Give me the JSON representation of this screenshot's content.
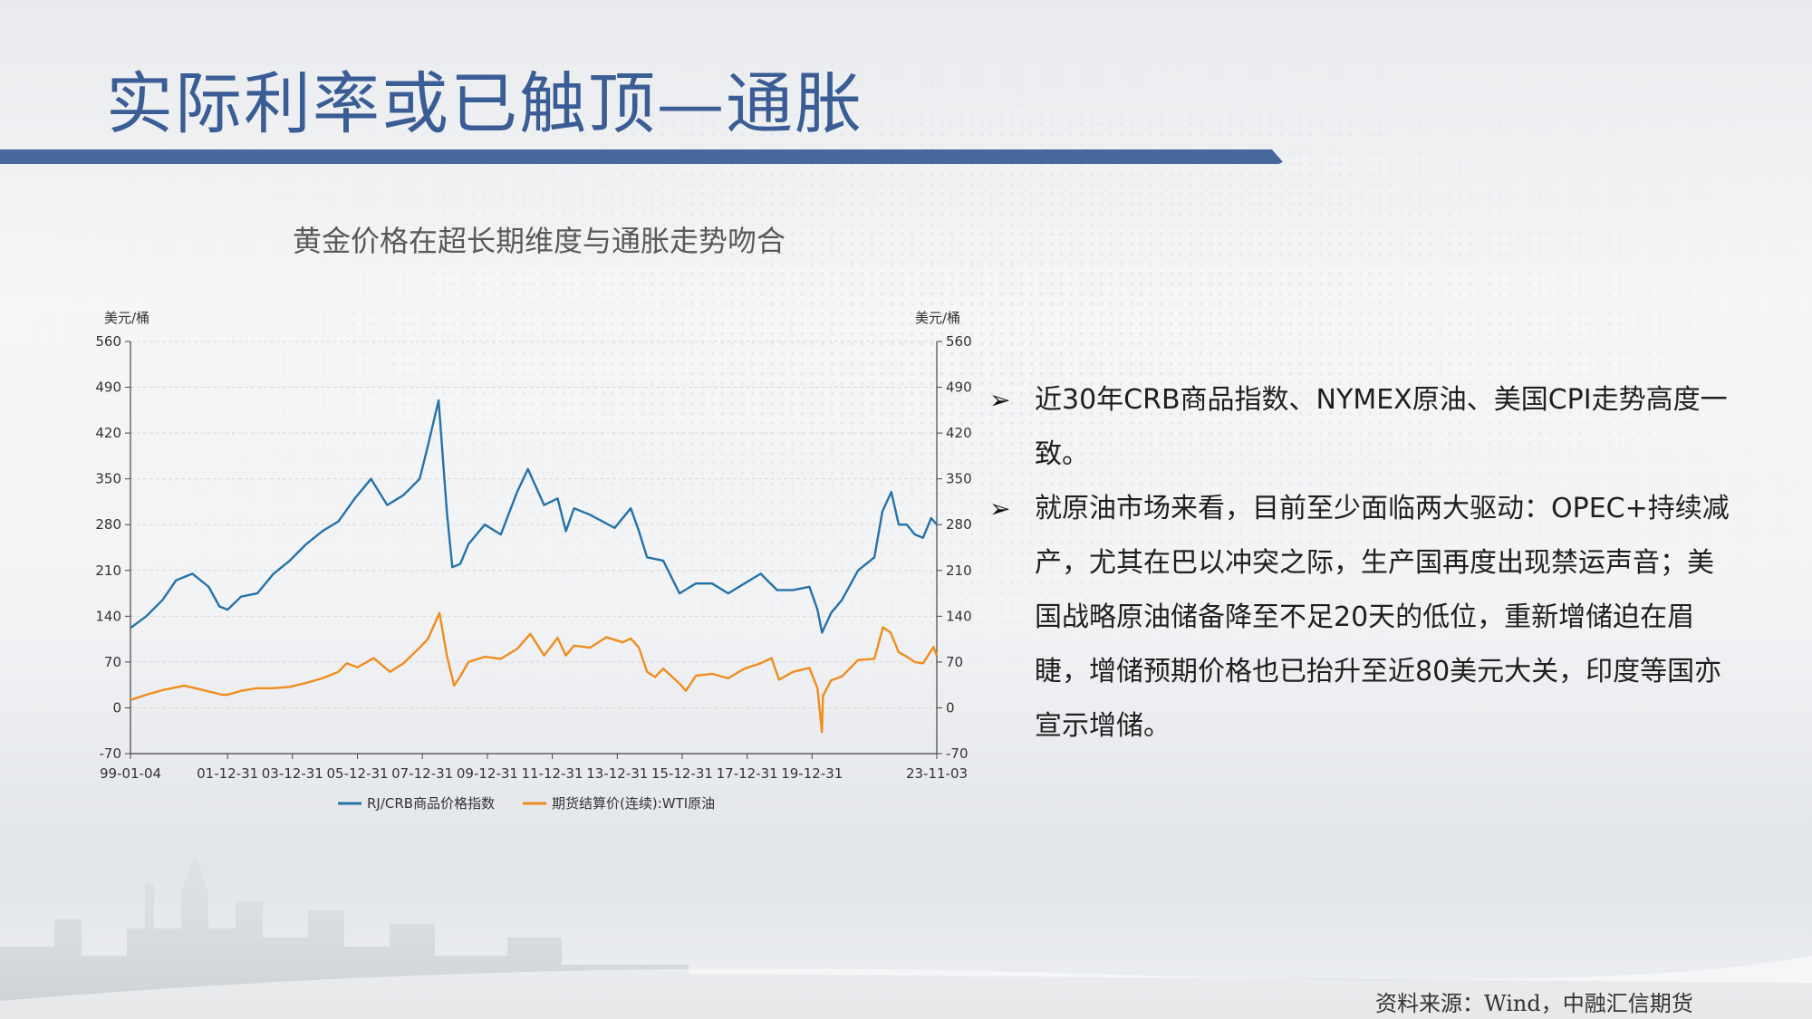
{
  "slide": {
    "title": "实际利率或已触顶—通胀",
    "source": "资料来源：Wind，中融汇信期货"
  },
  "bullets": [
    {
      "icon": "arrow-bullet-icon",
      "text": "近30年CRB商品指数、NYMEX原油、美国CPI走势高度一致。"
    },
    {
      "icon": "arrow-bullet-icon",
      "text": "就原油市场来看，目前至少面临两大驱动：OPEC+持续减产，尤其在巴以冲突之际，生产国再度出现禁运声音；美国战略原油储备降至不足20天的低位，重新增储迫在眉睫，增储预期价格也已抬升至近80美元大关，印度等国亦宣示增储。"
    }
  ],
  "colors": {
    "title": "#3a5d95",
    "crb_series": "#2672a8",
    "wti_series": "#f08c1c"
  },
  "chart_data": {
    "type": "line",
    "title": "黄金价格在超长期维度与通胀走势吻合",
    "left_unit": "美元/桶",
    "right_unit": "美元/桶",
    "ylim": [
      -70,
      560
    ],
    "yticks": [
      -70,
      0,
      70,
      140,
      210,
      280,
      350,
      420,
      490,
      560
    ],
    "xlim": [
      "1999-01-04",
      "2023-11-03"
    ],
    "xtick_labels": [
      "99-01-04",
      "01-12-31",
      "03-12-31",
      "05-12-31",
      "07-12-31",
      "09-12-31",
      "11-12-31",
      "13-12-31",
      "15-12-31",
      "17-12-31",
      "19-12-31",
      "23-11-03"
    ],
    "xtick_dates": [
      "1999-01-04",
      "2001-12-31",
      "2003-12-31",
      "2005-12-31",
      "2007-12-31",
      "2009-12-31",
      "2011-12-31",
      "2013-12-31",
      "2015-12-31",
      "2017-12-31",
      "2019-12-31",
      "2023-11-03"
    ],
    "legend": "bottom",
    "series": [
      {
        "name": "RJ/CRB商品价格指数",
        "color": "#2672a8",
        "points": [
          [
            "1999-01-04",
            122
          ],
          [
            "1999-07-01",
            140
          ],
          [
            "2000-01-01",
            165
          ],
          [
            "2000-06-01",
            195
          ],
          [
            "2000-12-01",
            205
          ],
          [
            "2001-06-01",
            185
          ],
          [
            "2001-10-01",
            155
          ],
          [
            "2002-01-01",
            150
          ],
          [
            "2002-06-01",
            170
          ],
          [
            "2002-12-01",
            175
          ],
          [
            "2003-06-01",
            205
          ],
          [
            "2003-12-01",
            225
          ],
          [
            "2004-06-01",
            250
          ],
          [
            "2004-12-01",
            270
          ],
          [
            "2005-06-01",
            285
          ],
          [
            "2005-12-01",
            320
          ],
          [
            "2006-06-01",
            350
          ],
          [
            "2006-12-01",
            310
          ],
          [
            "2007-06-01",
            325
          ],
          [
            "2007-12-01",
            350
          ],
          [
            "2008-03-01",
            400
          ],
          [
            "2008-07-01",
            470
          ],
          [
            "2008-10-01",
            300
          ],
          [
            "2008-12-01",
            215
          ],
          [
            "2009-03-01",
            220
          ],
          [
            "2009-06-01",
            250
          ],
          [
            "2009-12-01",
            280
          ],
          [
            "2010-06-01",
            265
          ],
          [
            "2010-12-01",
            330
          ],
          [
            "2011-04-01",
            365
          ],
          [
            "2011-10-01",
            310
          ],
          [
            "2012-03-01",
            320
          ],
          [
            "2012-06-01",
            270
          ],
          [
            "2012-09-01",
            305
          ],
          [
            "2013-03-01",
            295
          ],
          [
            "2013-12-01",
            275
          ],
          [
            "2014-06-01",
            305
          ],
          [
            "2014-09-01",
            270
          ],
          [
            "2014-12-01",
            230
          ],
          [
            "2015-06-01",
            225
          ],
          [
            "2015-12-01",
            175
          ],
          [
            "2016-06-01",
            190
          ],
          [
            "2016-12-01",
            190
          ],
          [
            "2017-06-01",
            175
          ],
          [
            "2017-12-01",
            190
          ],
          [
            "2018-06-01",
            205
          ],
          [
            "2018-12-01",
            180
          ],
          [
            "2019-06-01",
            180
          ],
          [
            "2019-12-01",
            185
          ],
          [
            "2020-03-01",
            150
          ],
          [
            "2020-04-21",
            115
          ],
          [
            "2020-08-01",
            145
          ],
          [
            "2020-12-01",
            165
          ],
          [
            "2021-06-01",
            210
          ],
          [
            "2021-12-01",
            230
          ],
          [
            "2022-03-01",
            300
          ],
          [
            "2022-06-09",
            330
          ],
          [
            "2022-09-01",
            280
          ],
          [
            "2022-12-01",
            280
          ],
          [
            "2023-03-01",
            265
          ],
          [
            "2023-06-01",
            260
          ],
          [
            "2023-09-01",
            290
          ],
          [
            "2023-11-03",
            280
          ]
        ]
      },
      {
        "name": "期货结算价(连续):WTI原油",
        "color": "#f08c1c",
        "points": [
          [
            "1999-01-04",
            12
          ],
          [
            "1999-07-01",
            20
          ],
          [
            "2000-01-01",
            27
          ],
          [
            "2000-09-01",
            34
          ],
          [
            "2001-03-01",
            28
          ],
          [
            "2001-11-01",
            20
          ],
          [
            "2002-01-01",
            20
          ],
          [
            "2002-06-01",
            26
          ],
          [
            "2002-12-01",
            30
          ],
          [
            "2003-06-01",
            30
          ],
          [
            "2003-12-01",
            32
          ],
          [
            "2004-06-01",
            38
          ],
          [
            "2004-12-01",
            45
          ],
          [
            "2005-06-01",
            55
          ],
          [
            "2005-08-30",
            68
          ],
          [
            "2006-01-01",
            62
          ],
          [
            "2006-07-01",
            76
          ],
          [
            "2007-01-01",
            55
          ],
          [
            "2007-06-01",
            68
          ],
          [
            "2007-12-01",
            92
          ],
          [
            "2008-03-01",
            105
          ],
          [
            "2008-07-11",
            145
          ],
          [
            "2008-10-01",
            80
          ],
          [
            "2008-12-22",
            34
          ],
          [
            "2009-03-01",
            48
          ],
          [
            "2009-06-01",
            70
          ],
          [
            "2009-12-01",
            78
          ],
          [
            "2010-06-01",
            75
          ],
          [
            "2010-12-01",
            90
          ],
          [
            "2011-04-29",
            113
          ],
          [
            "2011-10-01",
            80
          ],
          [
            "2012-03-01",
            107
          ],
          [
            "2012-06-01",
            80
          ],
          [
            "2012-09-01",
            95
          ],
          [
            "2013-03-01",
            92
          ],
          [
            "2013-09-01",
            108
          ],
          [
            "2014-03-01",
            100
          ],
          [
            "2014-06-01",
            106
          ],
          [
            "2014-09-01",
            92
          ],
          [
            "2014-12-01",
            55
          ],
          [
            "2015-03-01",
            47
          ],
          [
            "2015-06-01",
            60
          ],
          [
            "2015-12-01",
            37
          ],
          [
            "2016-02-11",
            26
          ],
          [
            "2016-06-01",
            49
          ],
          [
            "2016-12-01",
            52
          ],
          [
            "2017-06-01",
            45
          ],
          [
            "2017-12-01",
            60
          ],
          [
            "2018-06-01",
            68
          ],
          [
            "2018-10-01",
            76
          ],
          [
            "2018-12-24",
            43
          ],
          [
            "2019-06-01",
            55
          ],
          [
            "2019-12-01",
            61
          ],
          [
            "2020-03-01",
            30
          ],
          [
            "2020-04-20",
            -37
          ],
          [
            "2020-05-01",
            18
          ],
          [
            "2020-08-01",
            42
          ],
          [
            "2020-12-01",
            48
          ],
          [
            "2021-06-01",
            73
          ],
          [
            "2021-12-01",
            75
          ],
          [
            "2022-03-08",
            123
          ],
          [
            "2022-06-01",
            115
          ],
          [
            "2022-09-01",
            85
          ],
          [
            "2022-12-01",
            78
          ],
          [
            "2023-03-01",
            70
          ],
          [
            "2023-06-01",
            68
          ],
          [
            "2023-09-27",
            93
          ],
          [
            "2023-11-03",
            80
          ]
        ]
      }
    ]
  }
}
